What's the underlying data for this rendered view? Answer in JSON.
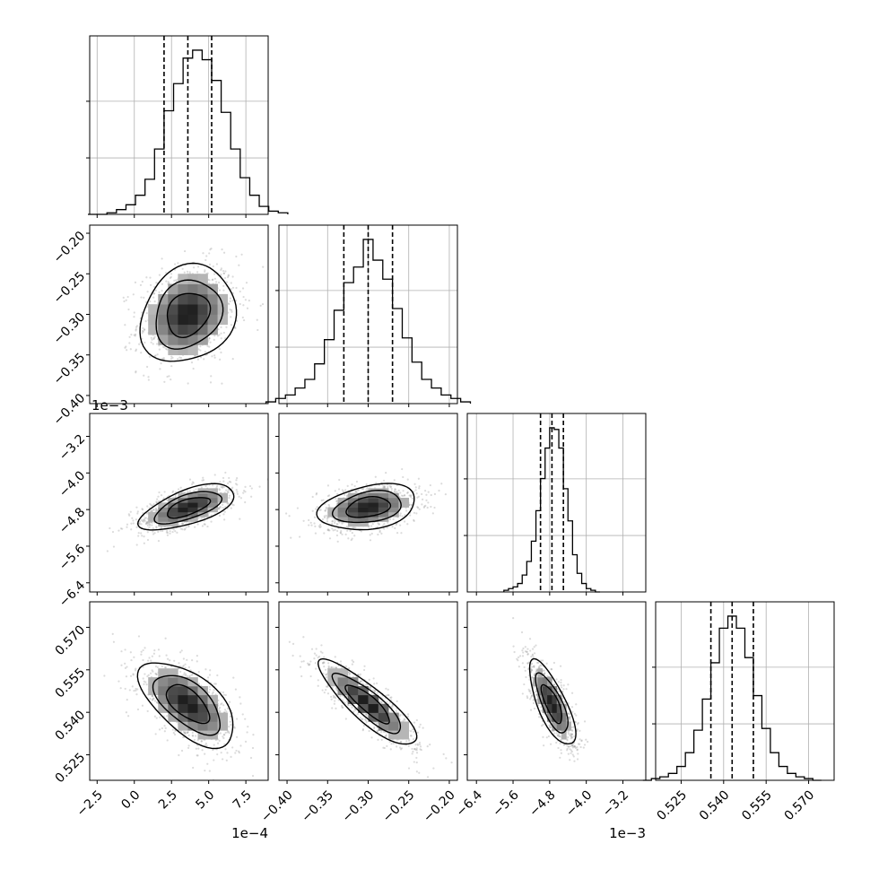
{
  "chart_data": {
    "type": "corner",
    "parameters": [
      {
        "index": 0,
        "range": [
          -0.0003,
          0.0009
        ],
        "ticks": [
          -0.00025,
          0,
          0.00025,
          0.0005,
          0.00075
        ],
        "tick_labels": [
          "−2.5",
          "0.0",
          "2.5",
          "5.0",
          "7.5"
        ],
        "offset_label": "1e−4",
        "quantiles": [
          0.0002,
          0.00036,
          0.00052
        ],
        "mean": 0.00036,
        "sd": 0.00016
      },
      {
        "index": 1,
        "range": [
          -0.41,
          -0.19
        ],
        "ticks": [
          -0.4,
          -0.35,
          -0.3,
          -0.25,
          -0.2
        ],
        "tick_labels": [
          "−0.40",
          "−0.35",
          "−0.30",
          "−0.25",
          "−0.20"
        ],
        "offset_label": "",
        "quantiles": [
          -0.33,
          -0.3,
          -0.27
        ],
        "mean": -0.3,
        "sd": 0.03
      },
      {
        "index": 2,
        "range": [
          -0.0066,
          -0.0027
        ],
        "ticks": [
          -0.0064,
          -0.0056,
          -0.0048,
          -0.004,
          -0.0032
        ],
        "tick_labels": [
          "−6.4",
          "−5.6",
          "−4.8",
          "−4.0",
          "−3.2"
        ],
        "offset_label": "1e−3",
        "quantiles": [
          -0.005,
          -0.00475,
          -0.0045
        ],
        "mean": -0.00475,
        "sd": 0.00025
      },
      {
        "index": 3,
        "range": [
          0.516,
          0.579
        ],
        "ticks": [
          0.525,
          0.54,
          0.555,
          0.57
        ],
        "tick_labels": [
          "0.525",
          "0.540",
          "0.555",
          "0.570"
        ],
        "offset_label": "",
        "quantiles": [
          0.5355,
          0.543,
          0.5505
        ],
        "mean": 0.543,
        "sd": 0.0075
      }
    ],
    "histograms": [
      {
        "param": 0,
        "counts": [
          0,
          0,
          1,
          3,
          6,
          12,
          22,
          41,
          65,
          82,
          98,
          103,
          97,
          84,
          64,
          41,
          23,
          12,
          5,
          2,
          1
        ]
      },
      {
        "param": 1,
        "counts": [
          1,
          3,
          5,
          9,
          14,
          23,
          37,
          54,
          70,
          79,
          95,
          83,
          72,
          55,
          38,
          24,
          14,
          9,
          5,
          3,
          1
        ]
      },
      {
        "param": 2,
        "counts": [
          1,
          2,
          3,
          5,
          10,
          18,
          30,
          48,
          67,
          85,
          97,
          96,
          85,
          61,
          42,
          22,
          11,
          5,
          2,
          1,
          0
        ]
      },
      {
        "param": 3,
        "counts": [
          0,
          1,
          2,
          4,
          8,
          16,
          29,
          47,
          68,
          88,
          95,
          88,
          71,
          49,
          30,
          16,
          8,
          4,
          2,
          1,
          0
        ]
      }
    ],
    "pairs": [
      {
        "x": 0,
        "y": 1,
        "correlation": 0.18
      },
      {
        "x": 0,
        "y": 2,
        "correlation": 0.62
      },
      {
        "x": 1,
        "y": 2,
        "correlation": 0.3
      },
      {
        "x": 0,
        "y": 3,
        "correlation": -0.6
      },
      {
        "x": 1,
        "y": 3,
        "correlation": -0.86
      },
      {
        "x": 2,
        "y": 3,
        "correlation": -0.74
      }
    ],
    "grid": true,
    "title": "",
    "colors": {
      "line": "#000000",
      "scatter": "#999999",
      "grid": "#b0b0b0",
      "axis": "#000000"
    }
  }
}
